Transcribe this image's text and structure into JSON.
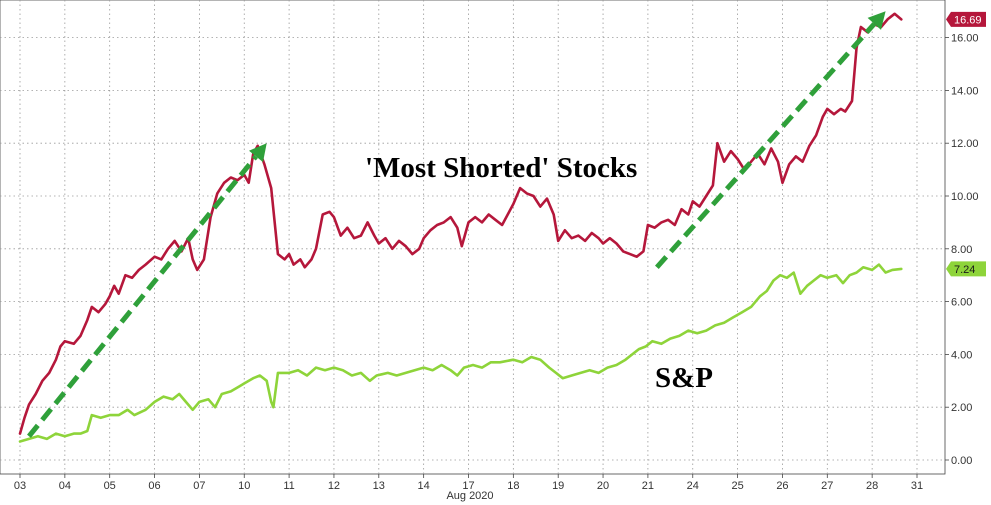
{
  "chart_data": {
    "type": "line",
    "xlabel": "Aug 2020",
    "ylabel": "",
    "ylim": [
      0,
      16.8
    ],
    "grid": true,
    "y_ticks": [
      "0.00",
      "2.00",
      "4.00",
      "6.00",
      "8.00",
      "10.00",
      "12.00",
      "14.00",
      "16.00"
    ],
    "x_ticks": [
      "03",
      "04",
      "05",
      "06",
      "07",
      "10",
      "11",
      "12",
      "13",
      "14",
      "17",
      "18",
      "19",
      "20",
      "21",
      "24",
      "25",
      "26",
      "27",
      "28",
      "31"
    ],
    "series": [
      {
        "name": "'Most Shorted' Stocks",
        "color": "#b5173b",
        "last_value_label": "16.69",
        "points": [
          [
            0,
            1.0
          ],
          [
            0.1,
            1.6
          ],
          [
            0.2,
            2.1
          ],
          [
            0.35,
            2.5
          ],
          [
            0.5,
            3.0
          ],
          [
            0.65,
            3.3
          ],
          [
            0.8,
            3.8
          ],
          [
            0.9,
            4.3
          ],
          [
            1.0,
            4.5
          ],
          [
            1.2,
            4.4
          ],
          [
            1.35,
            4.7
          ],
          [
            1.5,
            5.3
          ],
          [
            1.6,
            5.8
          ],
          [
            1.75,
            5.6
          ],
          [
            1.9,
            5.9
          ],
          [
            2.0,
            6.2
          ],
          [
            2.1,
            6.6
          ],
          [
            2.2,
            6.3
          ],
          [
            2.35,
            7.0
          ],
          [
            2.5,
            6.9
          ],
          [
            2.65,
            7.2
          ],
          [
            2.8,
            7.4
          ],
          [
            3.0,
            7.7
          ],
          [
            3.15,
            7.6
          ],
          [
            3.3,
            8.0
          ],
          [
            3.45,
            8.3
          ],
          [
            3.6,
            7.9
          ],
          [
            3.75,
            8.4
          ],
          [
            3.85,
            7.6
          ],
          [
            3.95,
            7.2
          ],
          [
            4.1,
            7.6
          ],
          [
            4.25,
            9.2
          ],
          [
            4.4,
            10.1
          ],
          [
            4.55,
            10.5
          ],
          [
            4.7,
            10.7
          ],
          [
            4.85,
            10.6
          ],
          [
            5.0,
            10.8
          ],
          [
            5.1,
            10.5
          ],
          [
            5.2,
            11.6
          ],
          [
            5.3,
            11.9
          ],
          [
            5.45,
            11.2
          ],
          [
            5.6,
            10.3
          ],
          [
            5.75,
            7.8
          ],
          [
            5.9,
            7.6
          ],
          [
            6.0,
            7.8
          ],
          [
            6.1,
            7.4
          ],
          [
            6.25,
            7.6
          ],
          [
            6.35,
            7.3
          ],
          [
            6.5,
            7.6
          ],
          [
            6.6,
            8.0
          ],
          [
            6.75,
            9.3
          ],
          [
            6.9,
            9.4
          ],
          [
            7.0,
            9.2
          ],
          [
            7.15,
            8.5
          ],
          [
            7.3,
            8.8
          ],
          [
            7.45,
            8.4
          ],
          [
            7.6,
            8.5
          ],
          [
            7.75,
            9.0
          ],
          [
            7.9,
            8.5
          ],
          [
            8.0,
            8.2
          ],
          [
            8.15,
            8.4
          ],
          [
            8.3,
            8.0
          ],
          [
            8.45,
            8.3
          ],
          [
            8.6,
            8.1
          ],
          [
            8.75,
            7.8
          ],
          [
            8.9,
            8.0
          ],
          [
            9.0,
            8.4
          ],
          [
            9.15,
            8.7
          ],
          [
            9.3,
            8.9
          ],
          [
            9.45,
            9.0
          ],
          [
            9.6,
            9.2
          ],
          [
            9.75,
            8.8
          ],
          [
            9.85,
            8.1
          ],
          [
            10.0,
            9.0
          ],
          [
            10.15,
            9.2
          ],
          [
            10.3,
            9.0
          ],
          [
            10.45,
            9.3
          ],
          [
            10.6,
            9.1
          ],
          [
            10.75,
            8.9
          ],
          [
            11.0,
            9.7
          ],
          [
            11.15,
            10.3
          ],
          [
            11.3,
            10.1
          ],
          [
            11.45,
            10.0
          ],
          [
            11.6,
            9.6
          ],
          [
            11.75,
            9.9
          ],
          [
            11.9,
            9.3
          ],
          [
            12.0,
            8.3
          ],
          [
            12.15,
            8.7
          ],
          [
            12.3,
            8.4
          ],
          [
            12.45,
            8.5
          ],
          [
            12.6,
            8.3
          ],
          [
            12.75,
            8.6
          ],
          [
            12.9,
            8.4
          ],
          [
            13.0,
            8.2
          ],
          [
            13.15,
            8.4
          ],
          [
            13.3,
            8.2
          ],
          [
            13.45,
            7.9
          ],
          [
            13.6,
            7.8
          ],
          [
            13.75,
            7.7
          ],
          [
            13.9,
            7.9
          ],
          [
            14.0,
            8.9
          ],
          [
            14.15,
            8.8
          ],
          [
            14.3,
            9.0
          ],
          [
            14.45,
            9.1
          ],
          [
            14.6,
            8.9
          ],
          [
            14.75,
            9.5
          ],
          [
            14.9,
            9.3
          ],
          [
            15.0,
            9.8
          ],
          [
            15.15,
            9.6
          ],
          [
            15.3,
            10.0
          ],
          [
            15.45,
            10.4
          ],
          [
            15.55,
            12.0
          ],
          [
            15.7,
            11.3
          ],
          [
            15.85,
            11.7
          ],
          [
            16.0,
            11.4
          ],
          [
            16.15,
            11.0
          ],
          [
            16.3,
            11.3
          ],
          [
            16.45,
            11.6
          ],
          [
            16.6,
            11.2
          ],
          [
            16.75,
            11.8
          ],
          [
            16.9,
            11.3
          ],
          [
            17.0,
            10.5
          ],
          [
            17.15,
            11.2
          ],
          [
            17.3,
            11.5
          ],
          [
            17.45,
            11.3
          ],
          [
            17.6,
            11.9
          ],
          [
            17.75,
            12.3
          ],
          [
            17.9,
            13.0
          ],
          [
            18.0,
            13.3
          ],
          [
            18.15,
            13.1
          ],
          [
            18.3,
            13.3
          ],
          [
            18.4,
            13.2
          ],
          [
            18.55,
            13.6
          ],
          [
            18.65,
            15.6
          ],
          [
            18.75,
            16.4
          ],
          [
            18.9,
            16.2
          ],
          [
            19.05,
            16.5
          ],
          [
            19.2,
            16.4
          ],
          [
            19.35,
            16.7
          ],
          [
            19.5,
            16.9
          ],
          [
            19.65,
            16.69
          ]
        ]
      },
      {
        "name": "S&P",
        "color": "#8ed43a",
        "last_value_label": "7.24",
        "points": [
          [
            0,
            0.7
          ],
          [
            0.2,
            0.8
          ],
          [
            0.4,
            0.9
          ],
          [
            0.6,
            0.8
          ],
          [
            0.8,
            1.0
          ],
          [
            1.0,
            0.9
          ],
          [
            1.2,
            1.0
          ],
          [
            1.35,
            1.0
          ],
          [
            1.5,
            1.1
          ],
          [
            1.6,
            1.7
          ],
          [
            1.8,
            1.6
          ],
          [
            2.0,
            1.7
          ],
          [
            2.2,
            1.7
          ],
          [
            2.4,
            1.9
          ],
          [
            2.55,
            1.7
          ],
          [
            2.8,
            1.9
          ],
          [
            3.0,
            2.2
          ],
          [
            3.2,
            2.4
          ],
          [
            3.4,
            2.3
          ],
          [
            3.55,
            2.5
          ],
          [
            3.7,
            2.2
          ],
          [
            3.85,
            1.9
          ],
          [
            4.0,
            2.2
          ],
          [
            4.2,
            2.3
          ],
          [
            4.35,
            2.0
          ],
          [
            4.5,
            2.5
          ],
          [
            4.7,
            2.6
          ],
          [
            4.9,
            2.8
          ],
          [
            5.0,
            2.9
          ],
          [
            5.2,
            3.1
          ],
          [
            5.35,
            3.2
          ],
          [
            5.5,
            3.0
          ],
          [
            5.6,
            2.2
          ],
          [
            5.65,
            2.0
          ],
          [
            5.75,
            3.3
          ],
          [
            6.0,
            3.3
          ],
          [
            6.2,
            3.4
          ],
          [
            6.4,
            3.2
          ],
          [
            6.6,
            3.5
          ],
          [
            6.8,
            3.4
          ],
          [
            7.0,
            3.5
          ],
          [
            7.2,
            3.4
          ],
          [
            7.4,
            3.2
          ],
          [
            7.6,
            3.3
          ],
          [
            7.8,
            3.0
          ],
          [
            7.95,
            3.2
          ],
          [
            8.2,
            3.3
          ],
          [
            8.4,
            3.2
          ],
          [
            8.6,
            3.3
          ],
          [
            8.8,
            3.4
          ],
          [
            9.0,
            3.5
          ],
          [
            9.2,
            3.4
          ],
          [
            9.4,
            3.6
          ],
          [
            9.6,
            3.4
          ],
          [
            9.75,
            3.2
          ],
          [
            9.9,
            3.5
          ],
          [
            10.1,
            3.6
          ],
          [
            10.3,
            3.5
          ],
          [
            10.5,
            3.7
          ],
          [
            10.7,
            3.7
          ],
          [
            11.0,
            3.8
          ],
          [
            11.2,
            3.7
          ],
          [
            11.4,
            3.9
          ],
          [
            11.6,
            3.8
          ],
          [
            11.8,
            3.5
          ],
          [
            11.95,
            3.3
          ],
          [
            12.1,
            3.1
          ],
          [
            12.3,
            3.2
          ],
          [
            12.5,
            3.3
          ],
          [
            12.7,
            3.4
          ],
          [
            12.9,
            3.3
          ],
          [
            13.1,
            3.5
          ],
          [
            13.3,
            3.6
          ],
          [
            13.5,
            3.8
          ],
          [
            13.65,
            4.0
          ],
          [
            13.8,
            4.2
          ],
          [
            13.95,
            4.3
          ],
          [
            14.1,
            4.5
          ],
          [
            14.3,
            4.4
          ],
          [
            14.5,
            4.6
          ],
          [
            14.7,
            4.7
          ],
          [
            14.9,
            4.9
          ],
          [
            15.1,
            4.8
          ],
          [
            15.3,
            4.9
          ],
          [
            15.5,
            5.1
          ],
          [
            15.7,
            5.2
          ],
          [
            15.9,
            5.4
          ],
          [
            16.1,
            5.6
          ],
          [
            16.3,
            5.8
          ],
          [
            16.5,
            6.2
          ],
          [
            16.65,
            6.4
          ],
          [
            16.8,
            6.8
          ],
          [
            16.95,
            7.0
          ],
          [
            17.1,
            6.9
          ],
          [
            17.25,
            7.1
          ],
          [
            17.4,
            6.3
          ],
          [
            17.55,
            6.6
          ],
          [
            17.7,
            6.8
          ],
          [
            17.85,
            7.0
          ],
          [
            18.0,
            6.9
          ],
          [
            18.2,
            7.0
          ],
          [
            18.35,
            6.7
          ],
          [
            18.5,
            7.0
          ],
          [
            18.65,
            7.1
          ],
          [
            18.8,
            7.3
          ],
          [
            19.0,
            7.2
          ],
          [
            19.15,
            7.4
          ],
          [
            19.3,
            7.1
          ],
          [
            19.45,
            7.2
          ],
          [
            19.65,
            7.24
          ]
        ]
      }
    ],
    "annotations": [
      {
        "text": "'Most Shorted' Stocks",
        "color": "#b5173b"
      },
      {
        "text": "S&P",
        "color": "#8ed43a"
      }
    ],
    "arrows": [
      {
        "color": "#2fa03a",
        "from": [
          0.2,
          0.9
        ],
        "to": [
          5.5,
          12.0
        ]
      },
      {
        "color": "#2fa03a",
        "from": [
          14.2,
          7.3
        ],
        "to": [
          19.3,
          17.0
        ]
      }
    ]
  }
}
